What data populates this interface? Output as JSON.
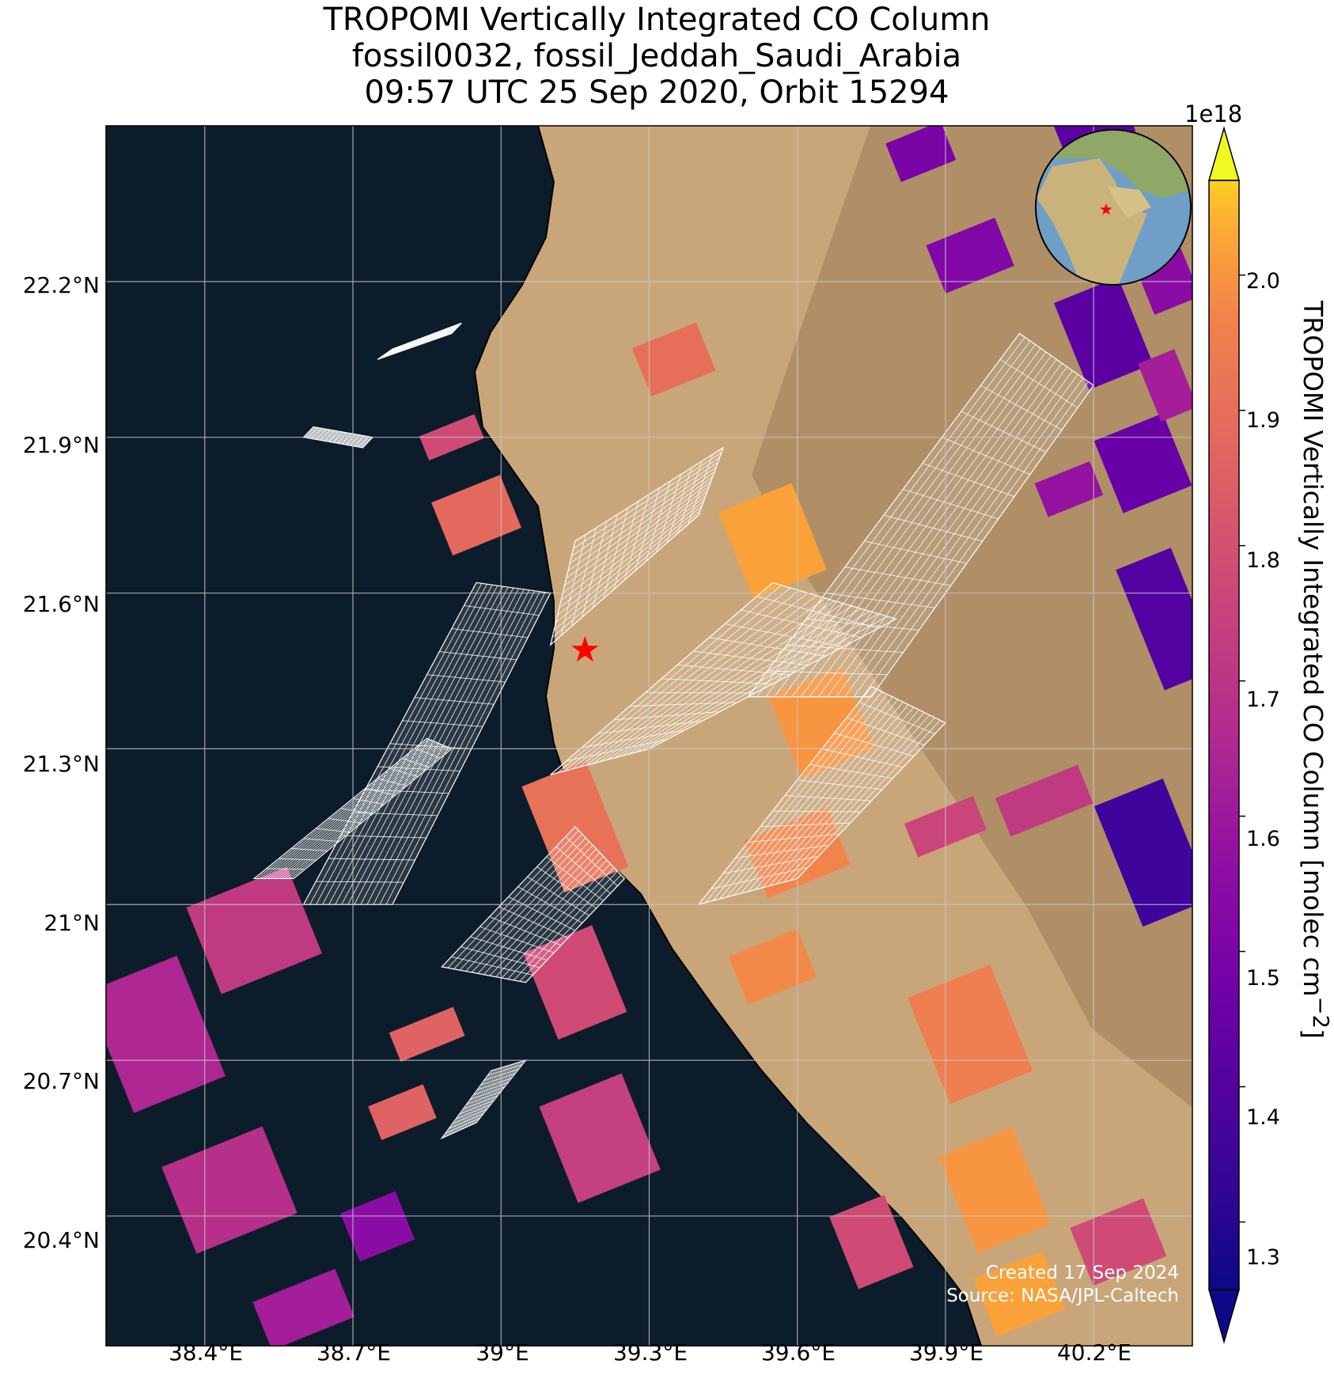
{
  "title": {
    "line1": "TROPOMI Vertically Integrated CO Column",
    "line2": "fossil0032, fossil_Jeddah_Saudi_Arabia",
    "line3": "09:57 UTC 25 Sep 2020, Orbit 15294"
  },
  "axes": {
    "lon_range": [
      38.2,
      40.4
    ],
    "lat_range": [
      20.15,
      22.5
    ],
    "lat_ticks": [
      "22.2°N",
      "21.9°N",
      "21.6°N",
      "21.3°N",
      "21°N",
      "20.7°N",
      "20.4°N"
    ],
    "lon_ticks": [
      "38.4°E",
      "38.7°E",
      "39°E",
      "39.3°E",
      "39.6°E",
      "39.9°E",
      "40.2°E"
    ]
  },
  "colorbar": {
    "label": "TROPOMI Vertically Integrated CO Column [molec cm",
    "label_sup": "−2",
    "label_end": "]",
    "exponent": "1e18",
    "range": [
      1.25,
      2.07
    ],
    "ticks": [
      "1.3",
      "1.4",
      "1.5",
      "1.6",
      "1.7",
      "1.8",
      "1.9",
      "2.0"
    ],
    "colormap": "plasma"
  },
  "credits": {
    "created": "Created 17 Sep 2024",
    "source": "Source: NASA/JPL-Caltech"
  },
  "site": {
    "lon": 39.17,
    "lat": 21.49,
    "marker": "red-star"
  },
  "inset": {
    "type": "globe",
    "marker": "red-star"
  },
  "colors": {
    "sea": "#0d1c2b",
    "land": "#c9a67a",
    "site_marker": "#ff0000"
  }
}
